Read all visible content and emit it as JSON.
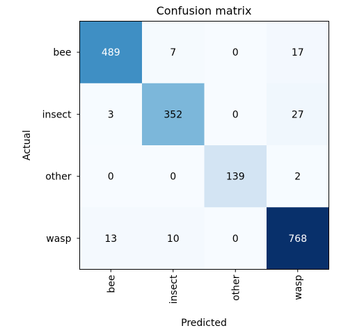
{
  "chart_data": {
    "type": "heatmap",
    "title": "Confusion matrix",
    "xlabel": "Predicted",
    "ylabel": "Actual",
    "x_categories": [
      "bee",
      "insect",
      "other",
      "wasp"
    ],
    "y_categories": [
      "bee",
      "insect",
      "other",
      "wasp"
    ],
    "values": [
      [
        489,
        7,
        0,
        17
      ],
      [
        3,
        352,
        0,
        27
      ],
      [
        0,
        0,
        139,
        2
      ],
      [
        13,
        10,
        0,
        768
      ]
    ],
    "colormap": "Blues",
    "grid": false,
    "colors": {
      "low": "#f7fbff",
      "high": "#08306b",
      "text_dark": "#000000",
      "text_light": "#ffffff"
    }
  }
}
